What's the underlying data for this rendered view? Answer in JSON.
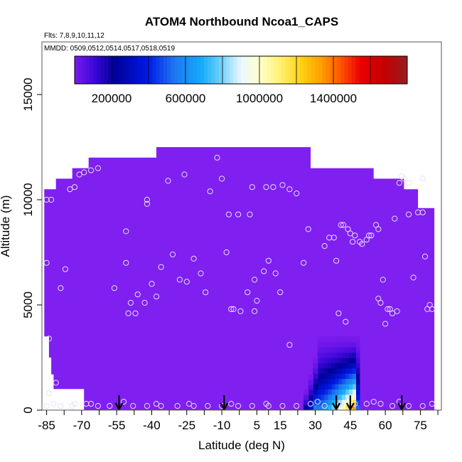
{
  "chart_data": {
    "type": "heatmap",
    "title": "ATOM4 Northbound Ncoa1_CAPS",
    "subtitle_flights": "Flts: 7,8,9,10,11,12",
    "subtitle_dates": "MMDD: 0509,0512,0514,0517,0518,0519",
    "xlabel": "Latitude (deg N)",
    "ylabel": "Altitude (m)",
    "xlim": [
      -87,
      84
    ],
    "ylim": [
      0,
      17500
    ],
    "x_ticks": [
      -85,
      -70,
      -55,
      -40,
      -25,
      -10,
      5,
      15,
      30,
      45,
      60,
      75
    ],
    "x_minor_ticks": [
      -77.5,
      -62.5,
      -47.5,
      -32.5,
      -17.5,
      -2.5,
      10,
      22.5,
      37.5,
      52.5,
      67.5,
      82.5
    ],
    "y_ticks": [
      0,
      5000,
      10000,
      15000
    ],
    "colorbar": {
      "ticks": [
        200000,
        600000,
        1000000,
        1400000
      ],
      "tick_labels": [
        "200000",
        "600000",
        "1000000",
        "1400000"
      ],
      "range": [
        0,
        1800000
      ]
    },
    "background_fill_color": "#7f1ff0",
    "envelope": [
      [
        -86,
        0
      ],
      [
        -86,
        10500
      ],
      [
        -81,
        10500
      ],
      [
        -81,
        11000
      ],
      [
        -74,
        11000
      ],
      [
        -74,
        11500
      ],
      [
        -67,
        11500
      ],
      [
        -67,
        12000
      ],
      [
        -38,
        12000
      ],
      [
        -38,
        12500
      ],
      [
        28,
        12500
      ],
      [
        28,
        11500
      ],
      [
        55,
        11500
      ],
      [
        55,
        11000
      ],
      [
        68,
        11000
      ],
      [
        68,
        10500
      ],
      [
        74,
        10500
      ],
      [
        74,
        9600
      ],
      [
        81,
        9600
      ],
      [
        81,
        0
      ],
      [
        -69,
        0
      ],
      [
        -69,
        1000
      ],
      [
        -82,
        1000
      ],
      [
        -82,
        1700
      ],
      [
        -83,
        1700
      ],
      [
        -83,
        2500
      ],
      [
        -84,
        2500
      ],
      [
        -84,
        3500
      ],
      [
        -86,
        3500
      ],
      [
        -86,
        0
      ]
    ],
    "hotspot": [
      {
        "lat_min": 31,
        "lat_max": 49,
        "alt_max": 3500,
        "peak": 1600000
      },
      {
        "lat_min": 29,
        "lat_max": 31,
        "alt_max": 2500,
        "peak": 600000
      },
      {
        "lat_min": 27,
        "lat_max": 29,
        "alt_max": 1700,
        "peak": 400000
      },
      {
        "lat_min": 25,
        "lat_max": 27,
        "alt_max": 1000,
        "peak": 250000
      }
    ],
    "takeoff_arrows_lat": [
      -54,
      -9,
      39,
      45,
      67
    ],
    "flight_points": [
      [
        -85,
        7000
      ],
      [
        -84,
        3400
      ],
      [
        -85,
        10000
      ],
      [
        -83,
        10000
      ],
      [
        -79,
        5800
      ],
      [
        -77,
        6700
      ],
      [
        -75,
        10500
      ],
      [
        -73,
        10600
      ],
      [
        -71,
        11200
      ],
      [
        -69,
        11300
      ],
      [
        -66,
        11400
      ],
      [
        -63,
        11500
      ],
      [
        -56,
        5800
      ],
      [
        -51,
        7000
      ],
      [
        -51,
        8500
      ],
      [
        -50,
        4600
      ],
      [
        -49,
        5100
      ],
      [
        -47,
        4600
      ],
      [
        -46,
        5500
      ],
      [
        -43,
        5100
      ],
      [
        -42,
        9800
      ],
      [
        -42,
        10000
      ],
      [
        -40,
        6000
      ],
      [
        -38,
        5400
      ],
      [
        -36,
        6800
      ],
      [
        -33,
        10900
      ],
      [
        -31,
        7400
      ],
      [
        -28,
        6200
      ],
      [
        -26,
        11200
      ],
      [
        -25,
        6100
      ],
      [
        -22,
        7200
      ],
      [
        -19,
        6500
      ],
      [
        -17,
        5600
      ],
      [
        -15,
        10400
      ],
      [
        -12,
        12000
      ],
      [
        -10,
        11000
      ],
      [
        -8,
        7500
      ],
      [
        -7,
        9300
      ],
      [
        -6,
        4800
      ],
      [
        -5,
        4800
      ],
      [
        -3,
        9300
      ],
      [
        -2,
        4700
      ],
      [
        1,
        5600
      ],
      [
        2,
        9300
      ],
      [
        3,
        10600
      ],
      [
        4,
        6200
      ],
      [
        4,
        4700
      ],
      [
        5,
        5200
      ],
      [
        8,
        6600
      ],
      [
        9,
        10600
      ],
      [
        10,
        7100
      ],
      [
        12,
        10600
      ],
      [
        13,
        6500
      ],
      [
        15,
        5600
      ],
      [
        16,
        10700
      ],
      [
        19,
        3100
      ],
      [
        19,
        10500
      ],
      [
        22,
        10300
      ],
      [
        25,
        7000
      ],
      [
        27,
        8600
      ],
      [
        34,
        7800
      ],
      [
        36,
        8200
      ],
      [
        38,
        8200
      ],
      [
        39,
        7100
      ],
      [
        40,
        4600
      ],
      [
        41,
        8800
      ],
      [
        42,
        8800
      ],
      [
        43,
        4200
      ],
      [
        44,
        8600
      ],
      [
        45,
        8400
      ],
      [
        46,
        8000
      ],
      [
        47,
        8300
      ],
      [
        49,
        8000
      ],
      [
        50,
        7900
      ],
      [
        52,
        8100
      ],
      [
        53,
        8300
      ],
      [
        54,
        8300
      ],
      [
        56,
        8800
      ],
      [
        57,
        8600
      ],
      [
        57,
        5300
      ],
      [
        58,
        5100
      ],
      [
        59,
        6200
      ],
      [
        60,
        4100
      ],
      [
        61,
        4800
      ],
      [
        62,
        4800
      ],
      [
        63,
        4600
      ],
      [
        64,
        9100
      ],
      [
        65,
        4700
      ],
      [
        66,
        10800
      ],
      [
        67,
        11100
      ],
      [
        68,
        11000
      ],
      [
        70,
        10800
      ],
      [
        70,
        9300
      ],
      [
        72,
        6300
      ],
      [
        74,
        9400
      ],
      [
        76,
        9400
      ],
      [
        77,
        7300
      ],
      [
        78,
        4800
      ],
      [
        79,
        5000
      ],
      [
        80,
        4800
      ],
      [
        76,
        11000
      ],
      [
        -85,
        200
      ],
      [
        -82,
        300
      ],
      [
        -79,
        200
      ],
      [
        -74,
        200
      ],
      [
        -68,
        300
      ],
      [
        -63,
        200
      ],
      [
        -58,
        200
      ],
      [
        -52,
        400
      ],
      [
        -48,
        200
      ],
      [
        -42,
        200
      ],
      [
        -36,
        200
      ],
      [
        -29,
        200
      ],
      [
        -22,
        200
      ],
      [
        -16,
        200
      ],
      [
        -10,
        200
      ],
      [
        -3,
        200
      ],
      [
        3,
        200
      ],
      [
        10,
        200
      ],
      [
        16,
        200
      ],
      [
        22,
        200
      ],
      [
        28,
        300
      ],
      [
        34,
        200
      ],
      [
        40,
        200
      ],
      [
        47,
        300
      ],
      [
        52,
        300
      ],
      [
        58,
        300
      ],
      [
        63,
        200
      ],
      [
        66,
        400
      ],
      [
        70,
        200
      ],
      [
        76,
        200
      ],
      [
        80,
        300
      ],
      [
        -81,
        1300
      ],
      [
        -84,
        800
      ],
      [
        -73,
        300
      ],
      [
        -66,
        300
      ],
      [
        -38,
        300
      ],
      [
        -24,
        300
      ],
      [
        -6,
        300
      ],
      [
        9,
        300
      ],
      [
        31,
        400
      ],
      [
        41,
        300
      ],
      [
        55,
        400
      ]
    ]
  }
}
